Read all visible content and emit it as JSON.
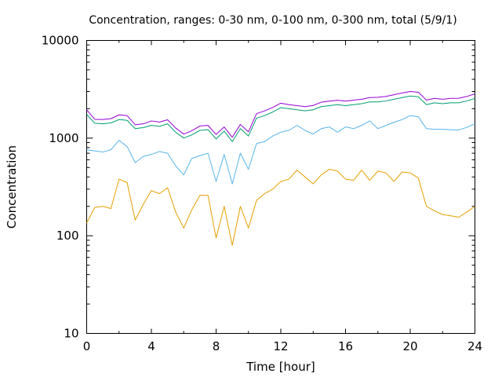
{
  "chart_data": {
    "type": "line",
    "title": "Concentration, ranges: 0-30 nm, 0-100 nm, 0-300 nm, total (5/9/1)",
    "xlabel": "Time [hour]",
    "ylabel": "Concentration",
    "xlim": [
      0,
      24
    ],
    "ylim": [
      10,
      10000
    ],
    "yscale": "log",
    "grid": false,
    "legend": "none",
    "x_ticks": [
      "0",
      "4",
      "8",
      "12",
      "16",
      "20",
      "24"
    ],
    "y_ticks": [
      "10",
      "100",
      "1000",
      "10000"
    ],
    "x": [
      0,
      0.5,
      1,
      1.5,
      2,
      2.5,
      3,
      3.5,
      4,
      4.5,
      5,
      5.5,
      6,
      6.5,
      7,
      7.5,
      8,
      8.5,
      9,
      9.5,
      10,
      10.5,
      11,
      11.5,
      12,
      12.5,
      13,
      13.5,
      14,
      14.5,
      15,
      15.5,
      16,
      16.5,
      17,
      17.5,
      18,
      18.5,
      19,
      19.5,
      20,
      20.5,
      21,
      21.5,
      22,
      22.5,
      23,
      23.5,
      24
    ],
    "series": [
      {
        "color": "#e69f00",
        "values": [
          135,
          195,
          200,
          190,
          380,
          350,
          145,
          210,
          290,
          270,
          310,
          175,
          120,
          185,
          260,
          260,
          95,
          200,
          80,
          200,
          120,
          230,
          270,
          300,
          360,
          380,
          470,
          400,
          340,
          420,
          480,
          460,
          380,
          370,
          470,
          370,
          460,
          440,
          360,
          450,
          440,
          390,
          200,
          180,
          165,
          160,
          155,
          175,
          200
        ]
      },
      {
        "color": "#56b4e9",
        "values": [
          760,
          740,
          720,
          760,
          950,
          820,
          560,
          650,
          680,
          730,
          700,
          520,
          420,
          620,
          660,
          700,
          360,
          680,
          340,
          700,
          480,
          880,
          920,
          1050,
          1150,
          1200,
          1350,
          1200,
          1100,
          1250,
          1300,
          1150,
          1300,
          1250,
          1350,
          1500,
          1250,
          1350,
          1450,
          1550,
          1700,
          1650,
          1250,
          1230,
          1230,
          1220,
          1210,
          1290,
          1400
        ]
      },
      {
        "color": "#009e73",
        "values": [
          1750,
          1420,
          1400,
          1430,
          1550,
          1520,
          1250,
          1280,
          1350,
          1320,
          1400,
          1150,
          1000,
          1080,
          1200,
          1220,
          980,
          1180,
          920,
          1250,
          1050,
          1600,
          1700,
          1850,
          2050,
          2000,
          1950,
          1900,
          1950,
          2100,
          2150,
          2200,
          2150,
          2200,
          2250,
          2350,
          2350,
          2400,
          2500,
          2600,
          2700,
          2650,
          2200,
          2300,
          2250,
          2300,
          2300,
          2400,
          2550
        ]
      },
      {
        "color": "#9400d3",
        "values": [
          1950,
          1560,
          1550,
          1580,
          1730,
          1700,
          1370,
          1400,
          1500,
          1460,
          1540,
          1270,
          1100,
          1190,
          1330,
          1350,
          1090,
          1300,
          1020,
          1380,
          1160,
          1780,
          1900,
          2060,
          2280,
          2200,
          2150,
          2100,
          2160,
          2330,
          2390,
          2440,
          2390,
          2450,
          2500,
          2600,
          2620,
          2670,
          2780,
          2900,
          3000,
          2950,
          2450,
          2550,
          2500,
          2550,
          2560,
          2670,
          2840
        ]
      }
    ]
  }
}
